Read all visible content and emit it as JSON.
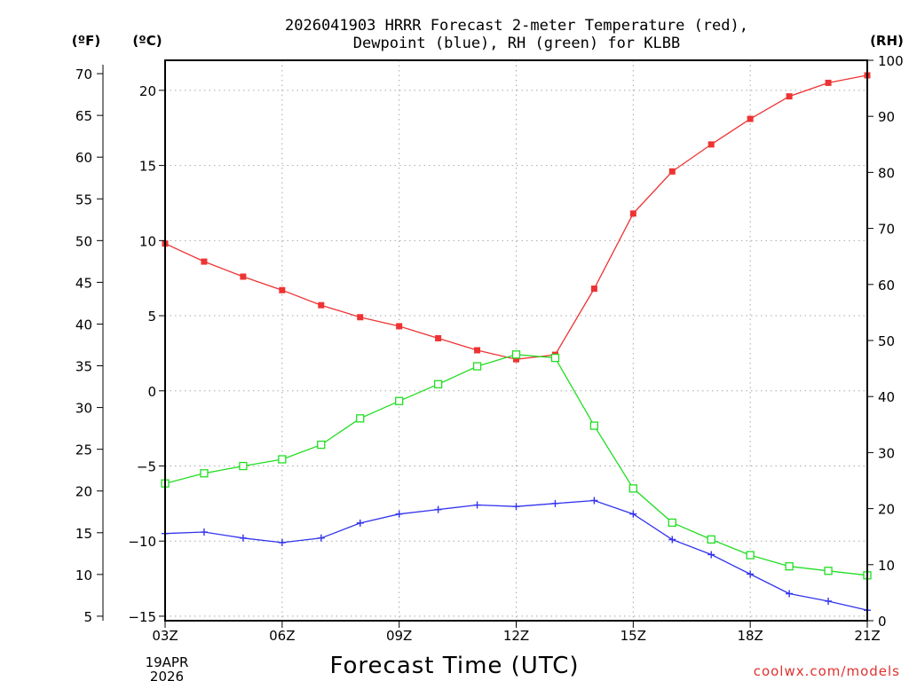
{
  "chart_data": {
    "type": "line",
    "title_lines": [
      "2026041903 HRRR Forecast 2-meter Temperature (red),",
      "Dewpoint (blue), RH (green) for KLBB"
    ],
    "xlabel": "Forecast Time (UTC)",
    "date_lines": [
      "19APR",
      "2026"
    ],
    "credit": "coolwx.com/models",
    "x_ticks": [
      "03Z",
      "06Z",
      "09Z",
      "12Z",
      "15Z",
      "18Z",
      "21Z"
    ],
    "categories": [
      "03Z",
      "04Z",
      "05Z",
      "06Z",
      "07Z",
      "08Z",
      "09Z",
      "10Z",
      "11Z",
      "12Z",
      "13Z",
      "14Z",
      "15Z",
      "16Z",
      "17Z",
      "18Z",
      "19Z",
      "20Z",
      "21Z"
    ],
    "axes": {
      "fahrenheit": {
        "unit_label": "(ºF)",
        "ticks": [
          "70",
          "65",
          "60",
          "55",
          "50",
          "45",
          "40",
          "35",
          "30",
          "25",
          "20",
          "15",
          "10",
          "5"
        ]
      },
      "celsius": {
        "unit_label": "(ºC)",
        "range": [
          -15.3,
          22
        ],
        "ticks": [
          "20",
          "15",
          "10",
          "5",
          "0",
          "−5",
          "−10",
          "−15"
        ]
      },
      "rh": {
        "unit_label": "(RH)",
        "range": [
          0,
          100
        ],
        "ticks": [
          "100",
          "90",
          "80",
          "70",
          "60",
          "50",
          "40",
          "30",
          "20",
          "10",
          "0"
        ]
      }
    },
    "series": [
      {
        "name": "2-meter Temperature",
        "axis": "celsius",
        "color": "#ee3333",
        "marker": "filled-square",
        "values": [
          9.8,
          8.6,
          7.6,
          6.7,
          5.7,
          4.9,
          4.3,
          3.5,
          2.7,
          2.1,
          2.4,
          6.8,
          11.8,
          14.6,
          16.4,
          18.1,
          19.6,
          20.5,
          21.0
        ]
      },
      {
        "name": "Dewpoint",
        "axis": "celsius",
        "color": "#3333ee",
        "marker": "plus",
        "values": [
          -9.5,
          -9.4,
          -9.8,
          -10.1,
          -9.8,
          -8.8,
          -8.2,
          -7.9,
          -7.6,
          -7.7,
          -7.5,
          -7.3,
          -8.2,
          -9.9,
          -10.9,
          -12.2,
          -13.5,
          -14.0,
          -14.6
        ]
      },
      {
        "name": "RH",
        "axis": "rh",
        "color": "#22dd22",
        "marker": "open-square",
        "values": [
          24.5,
          26.3,
          27.6,
          28.8,
          31.4,
          36.1,
          39.2,
          42.2,
          45.4,
          47.5,
          46.9,
          34.8,
          23.6,
          17.5,
          14.5,
          11.7,
          9.7,
          8.9,
          8.1
        ]
      }
    ]
  }
}
